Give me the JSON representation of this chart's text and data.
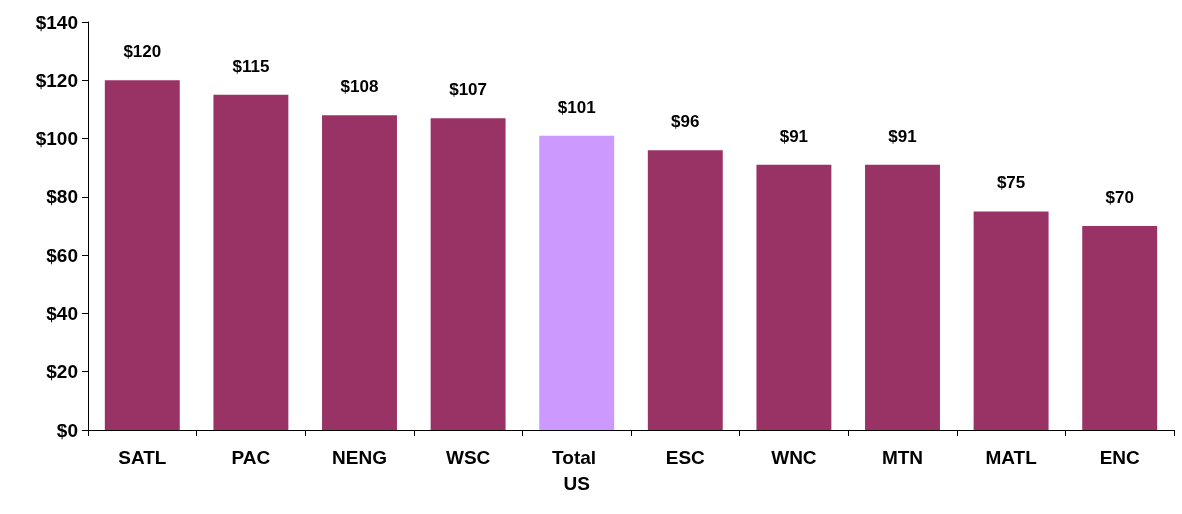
{
  "chart_data": {
    "type": "bar",
    "categories": [
      "SATL",
      "PAC",
      "NENG",
      "WSC",
      "Total US",
      "ESC",
      "WNC",
      "MTN",
      "MATL",
      "ENC"
    ],
    "values": [
      120,
      115,
      108,
      107,
      101,
      96,
      91,
      91,
      75,
      70
    ],
    "colors": [
      "#993366",
      "#993366",
      "#993366",
      "#993366",
      "#cc99ff",
      "#993366",
      "#993366",
      "#993366",
      "#993366",
      "#993366"
    ],
    "value_labels": [
      "$120",
      "$115",
      "$108",
      "$107",
      "$101",
      "$96",
      "$91",
      "$91",
      "$75",
      "$70"
    ],
    "ylim": [
      0,
      140
    ],
    "yticks": [
      {
        "value": 0,
        "label": "$0"
      },
      {
        "value": 20,
        "label": "$20"
      },
      {
        "value": 40,
        "label": "$40"
      },
      {
        "value": 60,
        "label": "$60"
      },
      {
        "value": 80,
        "label": "$80"
      },
      {
        "value": 100,
        "label": "$100"
      },
      {
        "value": 120,
        "label": "$120"
      },
      {
        "value": 140,
        "label": "$140"
      }
    ],
    "grid": false
  }
}
